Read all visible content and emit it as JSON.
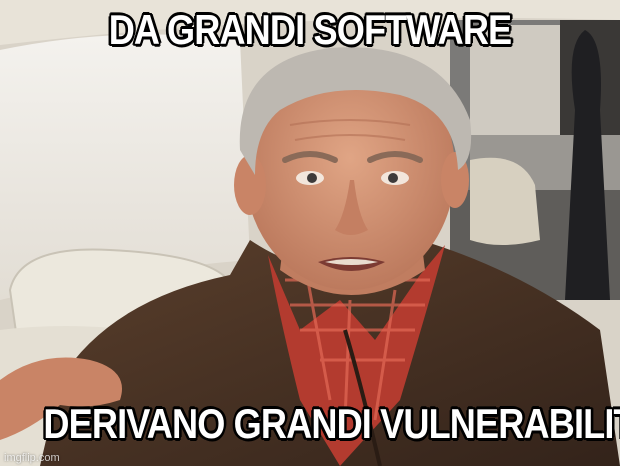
{
  "meme": {
    "top_text": "DA GRANDI SOFTWARE",
    "bottom_text": "DERIVANO GRANDI VULNERABILITÀ",
    "watermark": "imgflip.com"
  },
  "colors": {
    "caption_fill": "#ffffff",
    "caption_outline": "#000000",
    "jacket": "#4a3324",
    "shirt": "#b23a2e",
    "skin": "#d79a7c",
    "hair": "#b9b4ad",
    "car_interior": "#e9e4d8",
    "window": "#f3f1ec"
  }
}
